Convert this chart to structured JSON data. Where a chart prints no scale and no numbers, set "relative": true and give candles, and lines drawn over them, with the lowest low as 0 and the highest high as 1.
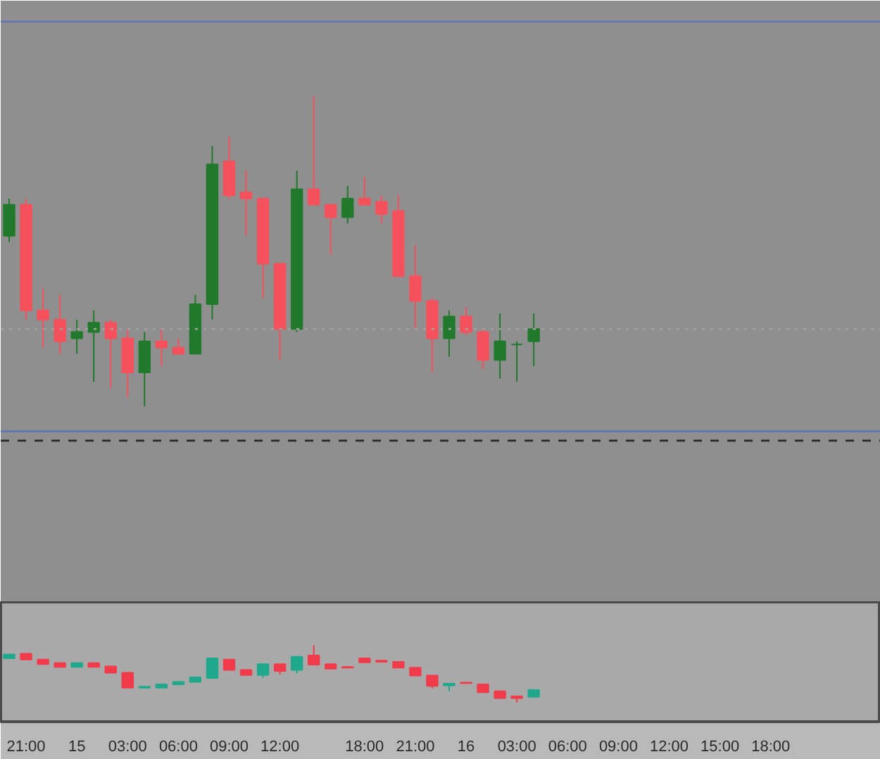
{
  "chart_data": [
    {
      "type": "candlestick",
      "relative": true,
      "tick_labels": false,
      "categories": [
        null,
        "21:00",
        null,
        null,
        "15",
        null,
        null,
        "03:00",
        null,
        null,
        "06:00",
        null,
        null,
        "09:00",
        null,
        null,
        "12:00",
        null,
        null,
        null,
        null,
        "18:00",
        null,
        null,
        "21:00",
        null,
        null,
        "16",
        null,
        null,
        "03:00",
        null,
        null,
        "06:00",
        null,
        null,
        "09:00",
        null,
        null,
        "12:00",
        null,
        null,
        "15:00",
        null,
        null,
        "18:00",
        null,
        null,
        null,
        null,
        null,
        null
      ],
      "ohlc": [
        [
          0.55,
          0.67,
          0.53,
          0.65
        ],
        [
          0.65,
          0.67,
          0.28,
          0.31
        ],
        [
          0.31,
          0.38,
          0.19,
          0.28
        ],
        [
          0.28,
          0.36,
          0.17,
          0.21
        ],
        [
          0.22,
          0.28,
          0.17,
          0.24
        ],
        [
          0.24,
          0.31,
          0.08,
          0.27
        ],
        [
          0.27,
          0.28,
          0.06,
          0.22
        ],
        [
          0.22,
          0.25,
          0.03,
          0.11
        ],
        [
          0.11,
          0.24,
          0.0,
          0.21
        ],
        [
          0.21,
          0.25,
          0.13,
          0.19
        ],
        [
          0.19,
          0.22,
          0.17,
          0.17
        ],
        [
          0.17,
          0.36,
          0.17,
          0.33
        ],
        [
          0.33,
          0.84,
          0.28,
          0.78
        ],
        [
          0.79,
          0.87,
          0.67,
          0.68
        ],
        [
          0.69,
          0.76,
          0.55,
          0.67
        ],
        [
          0.67,
          0.67,
          0.35,
          0.46
        ],
        [
          0.46,
          0.46,
          0.15,
          0.25
        ],
        [
          0.25,
          0.76,
          0.24,
          0.7
        ],
        [
          0.7,
          1.0,
          0.65,
          0.65
        ],
        [
          0.65,
          0.65,
          0.49,
          0.61
        ],
        [
          0.61,
          0.71,
          0.59,
          0.67
        ],
        [
          0.67,
          0.74,
          0.65,
          0.65
        ],
        [
          0.66,
          0.68,
          0.59,
          0.62
        ],
        [
          0.63,
          0.68,
          0.42,
          0.42
        ],
        [
          0.42,
          0.52,
          0.25,
          0.34
        ],
        [
          0.34,
          0.35,
          0.11,
          0.22
        ],
        [
          0.22,
          0.31,
          0.16,
          0.29
        ],
        [
          0.29,
          0.32,
          0.23,
          0.24
        ],
        [
          0.24,
          0.25,
          0.12,
          0.15
        ],
        [
          0.15,
          0.3,
          0.09,
          0.21
        ],
        [
          0.2,
          0.21,
          0.08,
          0.2
        ],
        [
          0.21,
          0.3,
          0.13,
          0.25
        ],
        null,
        null,
        null,
        null,
        null,
        null,
        null,
        null,
        null,
        null,
        null,
        null,
        null,
        null,
        null,
        null,
        null,
        null,
        null,
        null
      ],
      "colors": [
        "#217a2c",
        "#f5515c",
        "#f5515c",
        "#f5515c",
        "#217a2c",
        "#217a2c",
        "#f5515c",
        "#f5515c",
        "#217a2c",
        "#f5515c",
        "#f5515c",
        "#217a2c",
        "#217a2c",
        "#f5515c",
        "#f5515c",
        "#f5515c",
        "#f5515c",
        "#217a2c",
        "#f5515c",
        "#f5515c",
        "#217a2c",
        "#f5515c",
        "#f5515c",
        "#f5515c",
        "#f5515c",
        "#f5515c",
        "#217a2c",
        "#f5515c",
        "#f5515c",
        "#217a2c",
        "#217a2c",
        "#217a2c",
        null,
        null,
        null,
        null,
        null,
        null,
        null,
        null,
        null,
        null,
        null,
        null,
        null,
        null,
        null,
        null,
        null,
        null,
        null,
        null
      ],
      "ref_lines": [
        {
          "axis": "y",
          "value": 1.24,
          "color": "#6275b3",
          "line_style": "solid"
        },
        {
          "axis": "y",
          "value": -0.08,
          "color": "#6275b3",
          "line_style": "solid"
        },
        {
          "axis": "y",
          "value": 0.25,
          "color": "#a3a3a3",
          "line_style": "dotted"
        },
        {
          "axis": "y",
          "value": -0.11,
          "color": "#2a2a2a",
          "line_style": "dashed"
        }
      ]
    },
    {
      "type": "candlestick",
      "relative": true,
      "tick_labels": "x",
      "categories": [
        null,
        "21:00",
        null,
        null,
        "15",
        null,
        null,
        "03:00",
        null,
        null,
        "06:00",
        null,
        null,
        "09:00",
        null,
        null,
        "12:00",
        null,
        null,
        null,
        null,
        "18:00",
        null,
        null,
        "21:00",
        null,
        null,
        "16",
        null,
        null,
        "03:00",
        null,
        null,
        "06:00",
        null,
        null,
        "09:00",
        null,
        null,
        "12:00",
        null,
        null,
        "15:00",
        null,
        null,
        "18:00",
        null,
        null,
        null,
        null,
        null,
        null
      ],
      "ohlc": [
        [
          0.77,
          0.84,
          0.77,
          0.84
        ],
        [
          0.85,
          0.85,
          0.75,
          0.75
        ],
        [
          0.75,
          0.75,
          0.67,
          0.67
        ],
        [
          0.69,
          0.69,
          0.62,
          0.62
        ],
        [
          0.62,
          0.69,
          0.62,
          0.69
        ],
        [
          0.69,
          0.69,
          0.62,
          0.62
        ],
        [
          0.63,
          0.63,
          0.52,
          0.52
        ],
        [
          0.52,
          0.52,
          0.26,
          0.26
        ],
        [
          0.26,
          0.28,
          0.25,
          0.28
        ],
        [
          0.26,
          0.32,
          0.26,
          0.32
        ],
        [
          0.32,
          0.36,
          0.32,
          0.36
        ],
        [
          0.36,
          0.44,
          0.36,
          0.44
        ],
        [
          0.43,
          0.77,
          0.43,
          0.77
        ],
        [
          0.75,
          0.75,
          0.57,
          0.57
        ],
        [
          0.57,
          0.57,
          0.48,
          0.48
        ],
        [
          0.48,
          0.67,
          0.43,
          0.67
        ],
        [
          0.67,
          0.67,
          0.49,
          0.55
        ],
        [
          0.57,
          0.8,
          0.51,
          0.8
        ],
        [
          0.82,
          1.0,
          0.66,
          0.66
        ],
        [
          0.67,
          0.67,
          0.59,
          0.59
        ],
        [
          0.62,
          0.62,
          0.61,
          0.61
        ],
        [
          0.77,
          0.77,
          0.7,
          0.7
        ],
        [
          0.73,
          0.73,
          0.71,
          0.71
        ],
        [
          0.71,
          0.71,
          0.61,
          0.61
        ],
        [
          0.61,
          0.61,
          0.47,
          0.47
        ],
        [
          0.47,
          0.47,
          0.25,
          0.29
        ],
        [
          0.3,
          0.33,
          0.2,
          0.33
        ],
        [
          0.35,
          0.35,
          0.34,
          0.34
        ],
        [
          0.32,
          0.32,
          0.18,
          0.18
        ],
        [
          0.2,
          0.2,
          0.08,
          0.08
        ],
        [
          0.11,
          0.11,
          0.0,
          0.08
        ],
        [
          0.1,
          0.22,
          0.1,
          0.22
        ],
        null,
        null,
        null,
        null,
        null,
        null,
        null,
        null,
        null,
        null,
        null,
        null,
        null,
        null,
        null,
        null,
        null,
        null,
        null,
        null
      ],
      "colors": [
        "#1fa88c",
        "#f23b4a",
        "#f23b4a",
        "#f23b4a",
        "#1fa88c",
        "#f23b4a",
        "#f23b4a",
        "#f23b4a",
        "#1fa88c",
        "#1fa88c",
        "#1fa88c",
        "#1fa88c",
        "#1fa88c",
        "#f23b4a",
        "#f23b4a",
        "#1fa88c",
        "#f23b4a",
        "#1fa88c",
        "#f23b4a",
        "#f23b4a",
        "#f23b4a",
        "#f23b4a",
        "#f23b4a",
        "#f23b4a",
        "#f23b4a",
        "#f23b4a",
        "#1fa88c",
        "#f23b4a",
        "#f23b4a",
        "#f23b4a",
        "#f23b4a",
        "#1fa88c",
        null,
        null,
        null,
        null,
        null,
        null,
        null,
        null,
        null,
        null,
        null,
        null,
        null,
        null,
        null,
        null,
        null,
        null,
        null,
        null
      ]
    }
  ]
}
